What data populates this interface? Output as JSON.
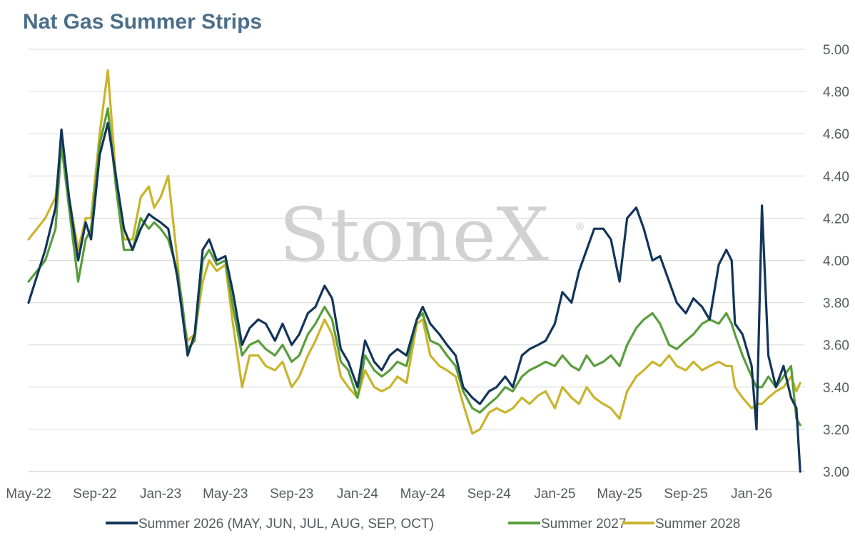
{
  "watermark": {
    "text": "StoneX",
    "mark": "®"
  },
  "colors": {
    "grid": "#d9d9d9",
    "axis_text": "#555a5e",
    "title": "#4b6e8a",
    "watermark": "#c9c9c9"
  },
  "chart_data": {
    "type": "line",
    "title": "Nat Gas Summer Strips",
    "xlabel": "",
    "ylabel": "",
    "ylim": [
      3.0,
      5.0
    ],
    "y_ticks": [
      "3.00",
      "3.20",
      "3.40",
      "3.60",
      "3.80",
      "4.00",
      "4.20",
      "4.40",
      "4.60",
      "4.80",
      "5.00"
    ],
    "y_axis_side": "right",
    "x_ticks": [
      "May-22",
      "Sep-22",
      "Jan-23",
      "May-23",
      "Sep-23",
      "Jan-24",
      "May-24",
      "Sep-24",
      "Jan-25",
      "May-25",
      "Sep-25",
      "Jan-26"
    ],
    "x_range": [
      "2022-05",
      "2026-04"
    ],
    "grid": "horizontal",
    "legend_position": "bottom",
    "series": [
      {
        "name": "Summer 2026 (MAY, JUN, JUL, AUG, SEP, OCT)",
        "color": "#13355a",
        "x": [
          "2022-05-01",
          "2022-06-01",
          "2022-06-20",
          "2022-07-01",
          "2022-07-15",
          "2022-08-01",
          "2022-08-15",
          "2022-08-25",
          "2022-09-10",
          "2022-09-25",
          "2022-10-10",
          "2022-10-25",
          "2022-11-10",
          "2022-11-25",
          "2022-12-10",
          "2022-12-20",
          "2023-01-01",
          "2023-01-15",
          "2023-02-01",
          "2023-02-10",
          "2023-02-20",
          "2023-03-05",
          "2023-03-20",
          "2023-04-01",
          "2023-04-15",
          "2023-05-01",
          "2023-05-15",
          "2023-06-01",
          "2023-06-15",
          "2023-07-01",
          "2023-07-15",
          "2023-08-01",
          "2023-08-15",
          "2023-09-01",
          "2023-09-15",
          "2023-10-01",
          "2023-10-15",
          "2023-11-01",
          "2023-11-15",
          "2023-12-01",
          "2023-12-15",
          "2024-01-01",
          "2024-01-15",
          "2024-02-01",
          "2024-02-15",
          "2024-03-01",
          "2024-03-15",
          "2024-04-01",
          "2024-04-20",
          "2024-05-01",
          "2024-05-15",
          "2024-06-01",
          "2024-06-15",
          "2024-07-01",
          "2024-07-15",
          "2024-08-01",
          "2024-08-15",
          "2024-09-01",
          "2024-09-15",
          "2024-10-01",
          "2024-10-15",
          "2024-11-01",
          "2024-11-15",
          "2024-12-01",
          "2024-12-15",
          "2025-01-01",
          "2025-01-15",
          "2025-02-01",
          "2025-02-15",
          "2025-03-01",
          "2025-03-15",
          "2025-04-01",
          "2025-04-15",
          "2025-05-01",
          "2025-05-15",
          "2025-06-01",
          "2025-06-15",
          "2025-07-01",
          "2025-07-15",
          "2025-08-01",
          "2025-08-15",
          "2025-09-01",
          "2025-09-15",
          "2025-10-01",
          "2025-10-15",
          "2025-11-01",
          "2025-11-15",
          "2025-11-25",
          "2025-12-01",
          "2025-12-15",
          "2026-01-01",
          "2026-01-10",
          "2026-01-20",
          "2026-02-01",
          "2026-02-15",
          "2026-03-01",
          "2026-03-15",
          "2026-03-25",
          "2026-04-01"
        ],
        "y": [
          3.8,
          4.05,
          4.25,
          4.62,
          4.3,
          4.0,
          4.18,
          4.1,
          4.5,
          4.65,
          4.4,
          4.15,
          4.05,
          4.15,
          4.22,
          4.2,
          4.18,
          4.15,
          3.92,
          3.75,
          3.55,
          3.65,
          4.05,
          4.1,
          4.0,
          4.02,
          3.85,
          3.6,
          3.68,
          3.72,
          3.7,
          3.62,
          3.7,
          3.6,
          3.65,
          3.75,
          3.78,
          3.88,
          3.82,
          3.58,
          3.52,
          3.4,
          3.62,
          3.52,
          3.48,
          3.55,
          3.58,
          3.55,
          3.72,
          3.78,
          3.7,
          3.65,
          3.6,
          3.55,
          3.4,
          3.35,
          3.32,
          3.38,
          3.4,
          3.45,
          3.4,
          3.55,
          3.58,
          3.6,
          3.62,
          3.7,
          3.85,
          3.8,
          3.95,
          4.05,
          4.15,
          4.15,
          4.1,
          3.9,
          4.2,
          4.25,
          4.15,
          4.0,
          4.02,
          3.9,
          3.8,
          3.75,
          3.82,
          3.78,
          3.72,
          3.98,
          4.05,
          4.0,
          3.7,
          3.65,
          3.5,
          3.2,
          4.26,
          3.55,
          3.4,
          3.5,
          3.35,
          3.3,
          3.0
        ]
      },
      {
        "name": "Summer 2027",
        "color": "#5a9e3c",
        "x": [
          "2022-05-01",
          "2022-06-01",
          "2022-06-20",
          "2022-07-01",
          "2022-07-15",
          "2022-08-01",
          "2022-08-15",
          "2022-08-25",
          "2022-09-10",
          "2022-09-25",
          "2022-10-10",
          "2022-10-25",
          "2022-11-10",
          "2022-11-25",
          "2022-12-10",
          "2022-12-20",
          "2023-01-01",
          "2023-01-15",
          "2023-02-01",
          "2023-02-10",
          "2023-02-20",
          "2023-03-05",
          "2023-03-20",
          "2023-04-01",
          "2023-04-15",
          "2023-05-01",
          "2023-05-15",
          "2023-06-01",
          "2023-06-15",
          "2023-07-01",
          "2023-07-15",
          "2023-08-01",
          "2023-08-15",
          "2023-09-01",
          "2023-09-15",
          "2023-10-01",
          "2023-10-15",
          "2023-11-01",
          "2023-11-15",
          "2023-12-01",
          "2023-12-15",
          "2024-01-01",
          "2024-01-15",
          "2024-02-01",
          "2024-02-15",
          "2024-03-01",
          "2024-03-15",
          "2024-04-01",
          "2024-04-20",
          "2024-05-01",
          "2024-05-15",
          "2024-06-01",
          "2024-06-15",
          "2024-07-01",
          "2024-07-15",
          "2024-08-01",
          "2024-08-15",
          "2024-09-01",
          "2024-09-15",
          "2024-10-01",
          "2024-10-15",
          "2024-11-01",
          "2024-11-15",
          "2024-12-01",
          "2024-12-15",
          "2025-01-01",
          "2025-01-15",
          "2025-02-01",
          "2025-02-15",
          "2025-03-01",
          "2025-03-15",
          "2025-04-01",
          "2025-04-15",
          "2025-05-01",
          "2025-05-15",
          "2025-06-01",
          "2025-06-15",
          "2025-07-01",
          "2025-07-15",
          "2025-08-01",
          "2025-08-15",
          "2025-09-01",
          "2025-09-15",
          "2025-10-01",
          "2025-10-15",
          "2025-11-01",
          "2025-11-15",
          "2025-11-25",
          "2025-12-01",
          "2025-12-15",
          "2026-01-01",
          "2026-01-10",
          "2026-01-20",
          "2026-02-01",
          "2026-02-15",
          "2026-03-01",
          "2026-03-15",
          "2026-03-25",
          "2026-04-01"
        ],
        "y": [
          3.9,
          4.0,
          4.15,
          4.55,
          4.25,
          3.9,
          4.1,
          4.15,
          4.55,
          4.72,
          4.35,
          4.05,
          4.05,
          4.2,
          4.15,
          4.18,
          4.15,
          4.1,
          3.95,
          3.8,
          3.58,
          3.62,
          4.0,
          4.05,
          3.98,
          4.0,
          3.78,
          3.55,
          3.6,
          3.62,
          3.58,
          3.55,
          3.6,
          3.52,
          3.55,
          3.65,
          3.7,
          3.78,
          3.72,
          3.52,
          3.48,
          3.35,
          3.55,
          3.48,
          3.45,
          3.48,
          3.52,
          3.5,
          3.72,
          3.75,
          3.62,
          3.6,
          3.55,
          3.5,
          3.38,
          3.3,
          3.28,
          3.32,
          3.35,
          3.4,
          3.38,
          3.45,
          3.48,
          3.5,
          3.52,
          3.5,
          3.55,
          3.5,
          3.48,
          3.55,
          3.5,
          3.52,
          3.55,
          3.5,
          3.6,
          3.68,
          3.72,
          3.75,
          3.7,
          3.6,
          3.58,
          3.62,
          3.65,
          3.7,
          3.72,
          3.7,
          3.75,
          3.7,
          3.65,
          3.55,
          3.45,
          3.4,
          3.4,
          3.45,
          3.4,
          3.45,
          3.5,
          3.25,
          3.22
        ]
      },
      {
        "name": "Summer 2028",
        "color": "#c9b42c",
        "x": [
          "2022-05-01",
          "2022-06-01",
          "2022-06-20",
          "2022-07-01",
          "2022-07-15",
          "2022-08-01",
          "2022-08-15",
          "2022-08-25",
          "2022-09-10",
          "2022-09-25",
          "2022-10-10",
          "2022-10-25",
          "2022-11-10",
          "2022-11-25",
          "2022-12-10",
          "2022-12-20",
          "2023-01-01",
          "2023-01-15",
          "2023-02-01",
          "2023-02-10",
          "2023-02-20",
          "2023-03-05",
          "2023-03-20",
          "2023-04-01",
          "2023-04-15",
          "2023-05-01",
          "2023-05-15",
          "2023-06-01",
          "2023-06-15",
          "2023-07-01",
          "2023-07-15",
          "2023-08-01",
          "2023-08-15",
          "2023-09-01",
          "2023-09-15",
          "2023-10-01",
          "2023-10-15",
          "2023-11-01",
          "2023-11-15",
          "2023-12-01",
          "2023-12-15",
          "2024-01-01",
          "2024-01-15",
          "2024-02-01",
          "2024-02-15",
          "2024-03-01",
          "2024-03-15",
          "2024-04-01",
          "2024-04-20",
          "2024-05-01",
          "2024-05-15",
          "2024-06-01",
          "2024-06-15",
          "2024-07-01",
          "2024-07-15",
          "2024-08-01",
          "2024-08-15",
          "2024-09-01",
          "2024-09-15",
          "2024-10-01",
          "2024-10-15",
          "2024-11-01",
          "2024-11-15",
          "2024-12-01",
          "2024-12-15",
          "2025-01-01",
          "2025-01-15",
          "2025-02-01",
          "2025-02-15",
          "2025-03-01",
          "2025-03-15",
          "2025-04-01",
          "2025-04-15",
          "2025-05-01",
          "2025-05-15",
          "2025-06-01",
          "2025-06-15",
          "2025-07-01",
          "2025-07-15",
          "2025-08-01",
          "2025-08-15",
          "2025-09-01",
          "2025-09-15",
          "2025-10-01",
          "2025-10-15",
          "2025-11-01",
          "2025-11-15",
          "2025-11-25",
          "2025-12-01",
          "2025-12-15",
          "2026-01-01",
          "2026-01-10",
          "2026-01-20",
          "2026-02-01",
          "2026-02-15",
          "2026-03-01",
          "2026-03-15",
          "2026-03-25",
          "2026-04-01"
        ],
        "y": [
          4.1,
          4.2,
          4.3,
          4.55,
          4.3,
          4.05,
          4.2,
          4.2,
          4.6,
          4.9,
          4.4,
          4.1,
          4.1,
          4.3,
          4.35,
          4.25,
          4.3,
          4.4,
          4.0,
          3.75,
          3.62,
          3.65,
          3.9,
          4.0,
          3.95,
          3.98,
          3.7,
          3.4,
          3.55,
          3.55,
          3.5,
          3.48,
          3.52,
          3.4,
          3.45,
          3.55,
          3.62,
          3.72,
          3.65,
          3.45,
          3.4,
          3.35,
          3.48,
          3.4,
          3.38,
          3.4,
          3.45,
          3.42,
          3.7,
          3.72,
          3.55,
          3.5,
          3.48,
          3.45,
          3.32,
          3.18,
          3.2,
          3.28,
          3.3,
          3.28,
          3.3,
          3.35,
          3.32,
          3.36,
          3.38,
          3.3,
          3.4,
          3.35,
          3.32,
          3.4,
          3.35,
          3.32,
          3.3,
          3.25,
          3.38,
          3.45,
          3.48,
          3.52,
          3.5,
          3.55,
          3.5,
          3.48,
          3.52,
          3.48,
          3.5,
          3.52,
          3.5,
          3.5,
          3.4,
          3.35,
          3.3,
          3.32,
          3.32,
          3.35,
          3.38,
          3.4,
          3.45,
          3.38,
          3.42
        ]
      }
    ]
  }
}
